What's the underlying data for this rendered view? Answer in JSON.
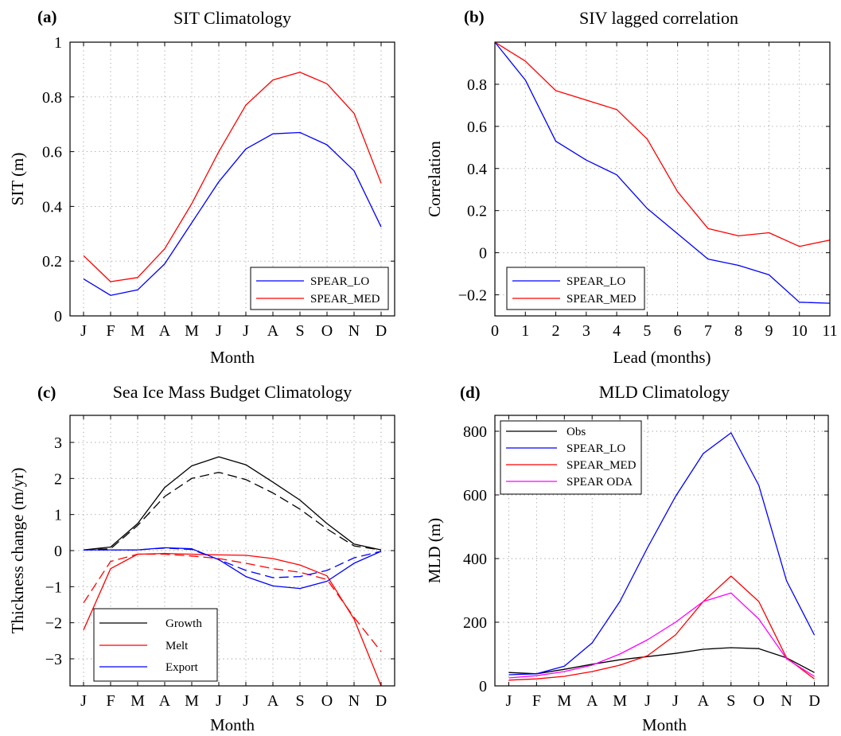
{
  "figure": {
    "panels": [
      "a",
      "b",
      "c",
      "d"
    ]
  },
  "chart_data": [
    {
      "id": "a",
      "panel_label": "(a)",
      "type": "line",
      "title": "SIT Climatology",
      "xlabel": "Month",
      "ylabel": "SIT (m)",
      "categories": [
        "J",
        "F",
        "M",
        "A",
        "M",
        "J",
        "J",
        "A",
        "S",
        "O",
        "N",
        "D"
      ],
      "ylim": [
        0,
        1
      ],
      "yticks": [
        0,
        0.2,
        0.4,
        0.6,
        0.8,
        1
      ],
      "ytick_labels": [
        "0",
        "0.2",
        "0.4",
        "0.6",
        "0.8",
        "1"
      ],
      "grid": true,
      "legend_position": "bottom-right",
      "series": [
        {
          "name": "SPEAR_LO",
          "color": "#0000ff",
          "dash": "solid",
          "values": [
            0.135,
            0.075,
            0.095,
            0.19,
            0.34,
            0.49,
            0.61,
            0.665,
            0.67,
            0.625,
            0.53,
            0.325
          ]
        },
        {
          "name": "SPEAR_MED",
          "color": "#ff0000",
          "dash": "solid",
          "values": [
            0.22,
            0.125,
            0.14,
            0.245,
            0.41,
            0.6,
            0.77,
            0.862,
            0.89,
            0.848,
            0.74,
            0.485
          ]
        }
      ]
    },
    {
      "id": "b",
      "panel_label": "(b)",
      "type": "line",
      "title": "SIV lagged correlation",
      "xlabel": "Lead (months)",
      "ylabel": "Correlation",
      "x": [
        0,
        1,
        2,
        3,
        4,
        5,
        6,
        7,
        8,
        9,
        10,
        11
      ],
      "xtick_labels": [
        "0",
        "1",
        "2",
        "3",
        "4",
        "5",
        "6",
        "7",
        "8",
        "9",
        "10",
        "11"
      ],
      "ylim": [
        -0.3,
        1
      ],
      "yticks": [
        -0.2,
        0,
        0.2,
        0.4,
        0.6,
        0.8
      ],
      "ytick_labels": [
        "−0.2",
        "0",
        "0.2",
        "0.4",
        "0.6",
        "0.8"
      ],
      "grid": true,
      "legend_position": "bottom-left",
      "series": [
        {
          "name": "SPEAR_LO",
          "color": "#0000ff",
          "dash": "solid",
          "values": [
            1.0,
            0.82,
            0.53,
            0.44,
            0.37,
            0.21,
            0.09,
            -0.03,
            -0.06,
            -0.105,
            -0.235,
            -0.24
          ]
        },
        {
          "name": "SPEAR_MED",
          "color": "#ff0000",
          "dash": "solid",
          "values": [
            1.0,
            0.91,
            0.77,
            0.725,
            0.68,
            0.54,
            0.29,
            0.115,
            0.08,
            0.095,
            0.03,
            0.06
          ]
        }
      ]
    },
    {
      "id": "c",
      "panel_label": "(c)",
      "type": "line",
      "title": "Sea Ice Mass Budget Climatology",
      "xlabel": "Month",
      "ylabel": "Thickness change (m/yr)",
      "categories": [
        "J",
        "F",
        "M",
        "A",
        "M",
        "J",
        "J",
        "A",
        "S",
        "O",
        "N",
        "D"
      ],
      "ylim": [
        -3.75,
        3.75
      ],
      "yticks": [
        -3,
        -2,
        -1,
        0,
        1,
        2,
        3
      ],
      "ytick_labels": [
        "−3",
        "−2",
        "−1",
        "0",
        "1",
        "2",
        "3"
      ],
      "grid": true,
      "legend_position": "bottom-left",
      "legend": [
        {
          "name": "Growth",
          "color": "#000000"
        },
        {
          "name": "Melt",
          "color": "#ff0000"
        },
        {
          "name": "Export",
          "color": "#0000ff"
        }
      ],
      "series": [
        {
          "name": "Growth",
          "color": "#000000",
          "dash": "solid",
          "values": [
            0.02,
            0.1,
            0.75,
            1.75,
            2.35,
            2.6,
            2.38,
            1.9,
            1.4,
            0.75,
            0.18,
            0.02
          ]
        },
        {
          "name": "Growth",
          "color": "#000000",
          "dash": "dashed",
          "values": [
            0.02,
            0.05,
            0.7,
            1.5,
            2.0,
            2.17,
            1.97,
            1.6,
            1.15,
            0.6,
            0.13,
            0.02
          ]
        },
        {
          "name": "Melt",
          "color": "#ff0000",
          "dash": "solid",
          "values": [
            -2.2,
            -0.5,
            -0.1,
            -0.08,
            -0.1,
            -0.12,
            -0.13,
            -0.22,
            -0.4,
            -0.7,
            -1.9,
            -3.75
          ]
        },
        {
          "name": "Melt",
          "color": "#ff0000",
          "dash": "dashed",
          "values": [
            -1.45,
            -0.3,
            -0.1,
            -0.1,
            -0.15,
            -0.22,
            -0.35,
            -0.5,
            -0.6,
            -0.8,
            -1.85,
            -2.8
          ]
        },
        {
          "name": "Export",
          "color": "#0000ff",
          "dash": "solid",
          "values": [
            0.02,
            0.02,
            0.02,
            0.08,
            0.05,
            -0.25,
            -0.72,
            -0.98,
            -1.05,
            -0.85,
            -0.35,
            -0.02
          ]
        },
        {
          "name": "Export",
          "color": "#0000ff",
          "dash": "dashed",
          "values": [
            0.02,
            0.02,
            0.02,
            0.07,
            0.03,
            -0.25,
            -0.55,
            -0.75,
            -0.72,
            -0.55,
            -0.2,
            -0.02
          ]
        }
      ]
    },
    {
      "id": "d",
      "panel_label": "(d)",
      "type": "line",
      "title": "MLD Climatology",
      "xlabel": "Month",
      "ylabel": "MLD (m)",
      "categories": [
        "J",
        "F",
        "M",
        "A",
        "M",
        "J",
        "J",
        "A",
        "S",
        "O",
        "N",
        "D"
      ],
      "ylim": [
        0,
        850
      ],
      "yticks": [
        0,
        200,
        400,
        600,
        800
      ],
      "ytick_labels": [
        "0",
        "200",
        "400",
        "600",
        "800"
      ],
      "grid": true,
      "legend_position": "top-left",
      "series": [
        {
          "name": "Obs",
          "color": "#000000",
          "dash": "solid",
          "values": [
            42,
            38,
            52,
            68,
            82,
            92,
            102,
            115,
            120,
            117,
            88,
            42
          ]
        },
        {
          "name": "SPEAR_LO",
          "color": "#0000ff",
          "dash": "solid",
          "values": [
            35,
            38,
            62,
            135,
            265,
            435,
            595,
            730,
            795,
            630,
            330,
            160
          ]
        },
        {
          "name": "SPEAR_MED",
          "color": "#ff0000",
          "dash": "solid",
          "values": [
            18,
            22,
            30,
            45,
            65,
            95,
            160,
            265,
            345,
            265,
            88,
            22
          ]
        },
        {
          "name": "SPEAR ODA",
          "color": "#ff00ff",
          "dash": "solid",
          "values": [
            25,
            32,
            45,
            65,
            100,
            145,
            200,
            265,
            292,
            210,
            85,
            30
          ]
        }
      ]
    }
  ]
}
